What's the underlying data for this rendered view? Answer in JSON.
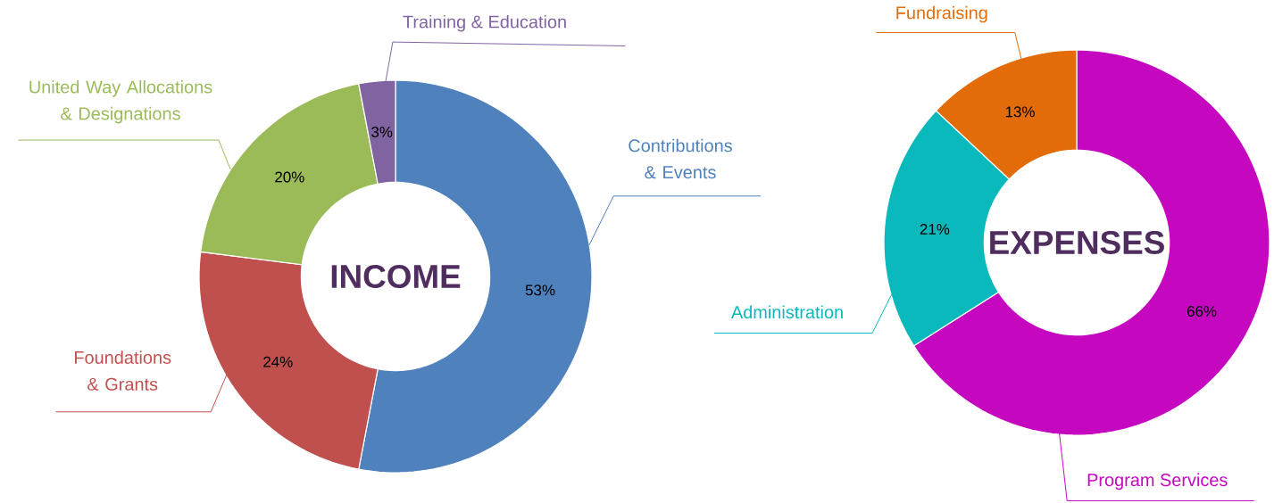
{
  "chart_data": [
    {
      "type": "donut",
      "title": "INCOME",
      "categories": [
        "Contributions & Events",
        "Foundations & Grants",
        "United Way Allocations & Designations",
        "Training & Education"
      ],
      "values": [
        53,
        24,
        20,
        3
      ],
      "value_labels": [
        "53%",
        "24%",
        "20%",
        "3%"
      ],
      "colors": [
        "#4f81bd",
        "#c0504d",
        "#9bbb59",
        "#8064a2"
      ]
    },
    {
      "type": "donut",
      "title": "EXPENSES",
      "categories": [
        "Program Services",
        "Administration",
        "Fundraising"
      ],
      "values": [
        66,
        21,
        13
      ],
      "value_labels": [
        "66%",
        "21%",
        "13%"
      ],
      "colors": [
        "#c507c0",
        "#0ab9bc",
        "#e36c0a"
      ]
    }
  ]
}
